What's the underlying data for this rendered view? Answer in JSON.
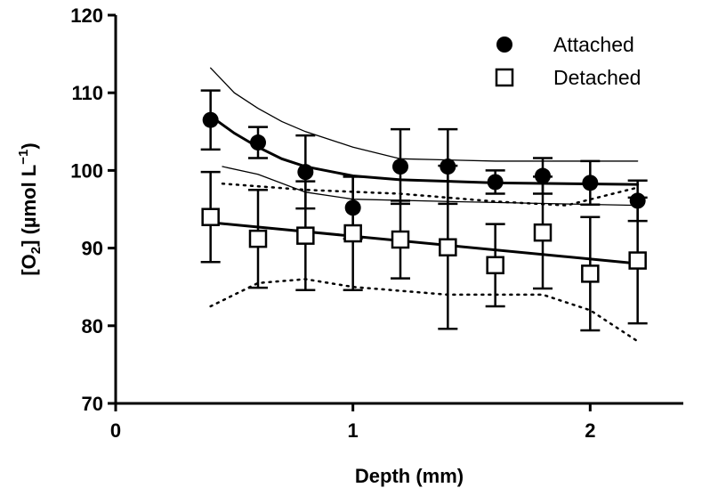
{
  "chart_data": {
    "type": "scatter",
    "xlabel": "Depth (mm)",
    "ylabel_parts": [
      "[O",
      "2",
      "] (µmol L",
      "−1",
      ")"
    ],
    "xlim": [
      0,
      2.4
    ],
    "xticks": [
      0,
      1,
      2
    ],
    "ylim": [
      70,
      120
    ],
    "yticks": [
      70,
      80,
      90,
      100,
      110,
      120
    ],
    "legend": "upper right",
    "series": [
      {
        "name": "Attached",
        "marker": "circle",
        "color": "#000000",
        "x": [
          0.4,
          0.6,
          0.8,
          1.0,
          1.2,
          1.4,
          1.6,
          1.8,
          2.0,
          2.2
        ],
        "values": [
          106.5,
          103.6,
          99.8,
          95.2,
          100.5,
          100.5,
          98.5,
          99.3,
          98.4,
          96.1
        ],
        "errors": [
          3.8,
          2.0,
          4.7,
          4.0,
          4.8,
          4.8,
          1.5,
          2.3,
          2.8,
          2.6
        ]
      },
      {
        "name": "Detached",
        "marker": "square",
        "color": "#000000",
        "x": [
          0.4,
          0.6,
          0.8,
          1.0,
          1.2,
          1.4,
          1.6,
          1.8,
          2.0,
          2.2
        ],
        "values": [
          94.0,
          91.2,
          91.6,
          91.9,
          91.1,
          90.1,
          87.8,
          92.0,
          86.7,
          88.4
        ],
        "errors": [
          5.8,
          6.3,
          7.0,
          7.3,
          5.0,
          10.5,
          5.3,
          7.2,
          7.3,
          8.1
        ]
      }
    ],
    "curves": [
      {
        "style": "solid",
        "width": 3,
        "x": [
          0.4,
          0.5,
          0.6,
          0.7,
          0.8,
          1.0,
          1.2,
          1.6,
          2.2
        ],
        "values": [
          107,
          104.8,
          103,
          101.5,
          100.5,
          99.3,
          98.8,
          98.4,
          98.2
        ]
      },
      {
        "style": "solid",
        "width": 1.3,
        "x": [
          0.4,
          0.5,
          0.6,
          0.7,
          0.8,
          1.0,
          1.2,
          1.6,
          2.2
        ],
        "values": [
          113.2,
          110,
          108,
          106.3,
          105,
          103,
          101.5,
          101.2,
          101.2
        ]
      },
      {
        "style": "solid",
        "width": 1.3,
        "x": [
          0.45,
          0.6,
          0.8,
          1.0,
          1.4,
          2.2
        ],
        "values": [
          100.5,
          99.5,
          97.2,
          96.3,
          96,
          95.5
        ]
      },
      {
        "style": "solid",
        "width": 3,
        "x": [
          0.4,
          2.2
        ],
        "values": [
          93.3,
          88
        ]
      },
      {
        "style": "dotted",
        "width": 2.5,
        "x": [
          0.45,
          0.8,
          1.2,
          1.6,
          1.9,
          2.2
        ],
        "values": [
          98.3,
          97.5,
          97,
          96,
          95.5,
          97.8
        ]
      },
      {
        "style": "dotted",
        "width": 2.5,
        "x": [
          0.4,
          0.6,
          0.8,
          1.0,
          1.4,
          1.8,
          2.0,
          2.2
        ],
        "values": [
          82.5,
          85.5,
          86,
          85,
          84,
          84,
          82,
          78
        ]
      }
    ]
  }
}
